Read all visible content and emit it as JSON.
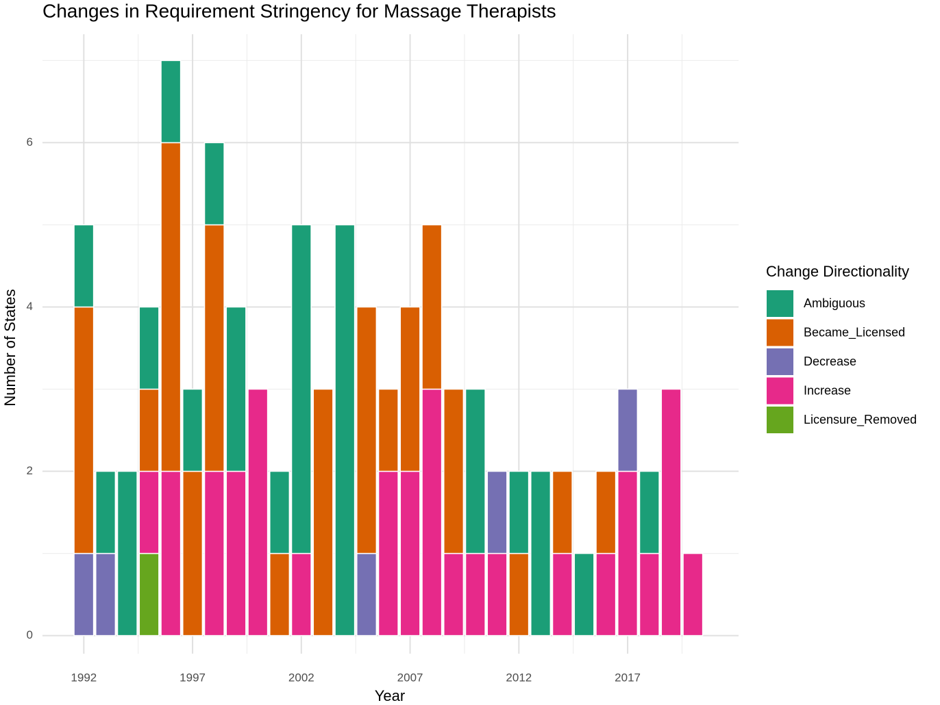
{
  "chart_data": {
    "type": "stacked_bar",
    "title": "Changes in Requirement Stringency for Massage Therapists",
    "x_label": "Year",
    "y_label": "Number of States",
    "legend_title": "Change Directionality",
    "legend": "right",
    "x": [
      1992,
      1993,
      1994,
      1995,
      1996,
      1997,
      1998,
      1999,
      2000,
      2001,
      2002,
      2003,
      2004,
      2005,
      2006,
      2007,
      2008,
      2009,
      2010,
      2011,
      2012,
      2013,
      2014,
      2015,
      2016,
      2017,
      2018,
      2019,
      2020
    ],
    "series": [
      {
        "name": "Ambiguous",
        "color": "#1b9e77",
        "values": [
          1,
          1,
          2,
          1,
          1,
          1,
          1,
          2,
          null,
          1,
          4,
          null,
          5,
          null,
          null,
          null,
          null,
          null,
          2,
          null,
          1,
          2,
          null,
          1,
          null,
          null,
          1,
          null,
          null
        ]
      },
      {
        "name": "Became_Licensed",
        "color": "#d95f02",
        "values": [
          3,
          null,
          null,
          1,
          4,
          2,
          3,
          null,
          null,
          1,
          null,
          3,
          null,
          3,
          1,
          2,
          2,
          2,
          null,
          null,
          1,
          null,
          1,
          null,
          1,
          null,
          null,
          null,
          null
        ]
      },
      {
        "name": "Decrease",
        "color": "#7570b3",
        "values": [
          1,
          1,
          null,
          null,
          null,
          null,
          null,
          null,
          null,
          null,
          null,
          null,
          null,
          1,
          null,
          null,
          null,
          null,
          null,
          1,
          null,
          null,
          null,
          null,
          null,
          1,
          null,
          null,
          null
        ]
      },
      {
        "name": "Increase",
        "color": "#e7298a",
        "values": [
          null,
          null,
          null,
          1,
          2,
          null,
          2,
          2,
          3,
          null,
          1,
          null,
          null,
          null,
          2,
          2,
          3,
          1,
          1,
          1,
          null,
          null,
          1,
          null,
          1,
          2,
          1,
          3,
          1
        ]
      },
      {
        "name": "Licensure_Removed",
        "color": "#66a61e",
        "values": [
          null,
          null,
          null,
          1,
          null,
          null,
          null,
          null,
          null,
          null,
          null,
          null,
          null,
          null,
          null,
          null,
          null,
          null,
          null,
          null,
          null,
          null,
          null,
          null,
          null,
          null,
          null,
          null,
          null
        ]
      }
    ],
    "xlim": [
      1990.1,
      2022.1
    ],
    "xticks": [
      1992,
      1997,
      2002,
      2007,
      2012,
      2017
    ],
    "ylim": [
      -0.22,
      7.32
    ],
    "yticks": [
      0,
      2,
      4,
      6
    ],
    "grid": true
  }
}
